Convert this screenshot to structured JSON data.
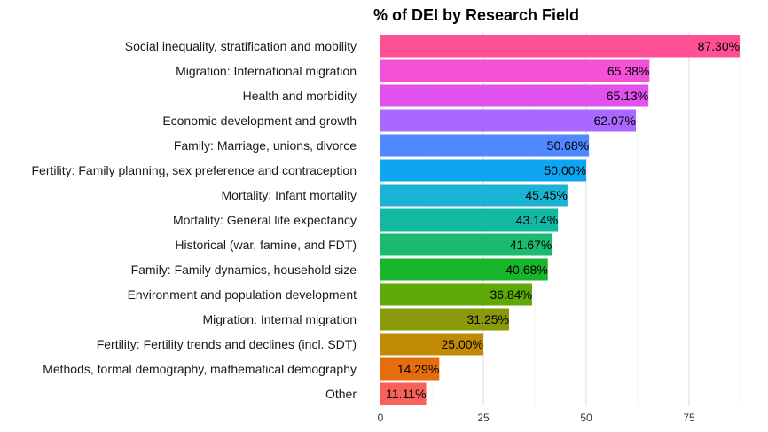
{
  "chart_data": {
    "type": "bar",
    "orientation": "horizontal",
    "title": "% of DEI by Research Field",
    "xlabel": "",
    "ylabel": "",
    "xlim": [
      0,
      90
    ],
    "x_ticks": [
      0,
      25,
      50,
      75
    ],
    "grid": true,
    "legend": "none",
    "categories": [
      "Social inequality, stratification and mobility",
      "Migration: International migration",
      "Health and morbidity",
      "Economic development and growth",
      "Family: Marriage, unions, divorce",
      "Fertility: Family planning, sex preference and contraception",
      "Mortality: Infant mortality",
      "Mortality: General life expectancy",
      "Historical (war, famine, and FDT)",
      "Family: Family dynamics, household size",
      "Environment and population development",
      "Migration: Internal migration",
      "Fertility: Fertility trends and declines (incl. SDT)",
      "Methods, formal demography, mathematical demography",
      "Other"
    ],
    "values": [
      87.3,
      65.38,
      65.13,
      62.07,
      50.68,
      50.0,
      45.45,
      43.14,
      41.67,
      40.68,
      36.84,
      31.25,
      25.0,
      14.29,
      11.11
    ],
    "value_labels": [
      "87.30%",
      "65.38%",
      "65.13%",
      "62.07%",
      "50.68%",
      "50.00%",
      "45.45%",
      "43.14%",
      "41.67%",
      "40.68%",
      "36.84%",
      "31.25%",
      "25.00%",
      "14.29%",
      "11.11%"
    ],
    "colors": [
      "#FF5096",
      "#F451D9",
      "#E051EE",
      "#A968FF",
      "#5088FF",
      "#0EA5F2",
      "#1BB3D4",
      "#13B9A2",
      "#1ABB6E",
      "#17B52A",
      "#5EA808",
      "#8B9A0A",
      "#C08A05",
      "#E66D0E",
      "#F8605A"
    ]
  }
}
